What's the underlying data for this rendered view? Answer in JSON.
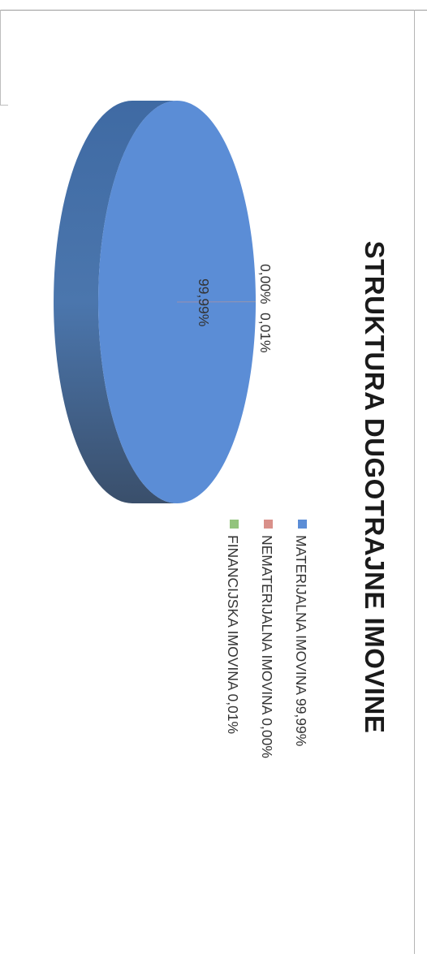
{
  "chart_data": {
    "type": "pie",
    "title": "STRUKTURA DUGOTRAJNE IMOVINE",
    "slices": [
      {
        "name": "MATERIJALNA IMOVINA",
        "value": 99.99,
        "label": "99,99%",
        "legend": "MATERIJALNA IMOVINA 99,99%",
        "color": "#5b8dd6"
      },
      {
        "name": "NEMATERIJALNA IMOVINA",
        "value": 0.0,
        "label": "0,00%",
        "legend": "NEMATERIJALNA IMOVINA 0,00%",
        "color": "#d9908a"
      },
      {
        "name": "FINANCIJSKA IMOVINA",
        "value": 0.01,
        "label": "0,01%",
        "legend": "FINANCIJSKA IMOVINA 0,01%",
        "color": "#93c47d"
      }
    ],
    "legend_position": "right",
    "style": "3d-pie",
    "orientation": "rotated-90"
  }
}
